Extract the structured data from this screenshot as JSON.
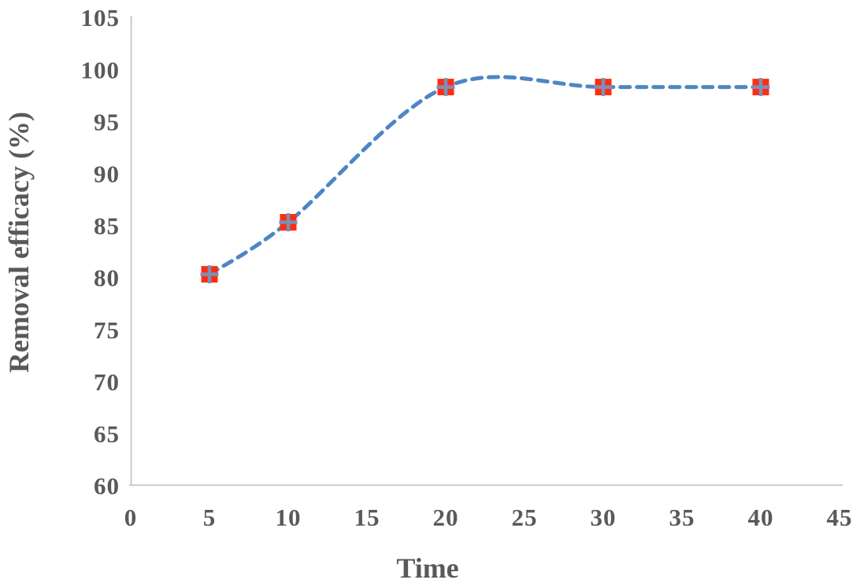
{
  "page": {
    "background": "#ffffff"
  },
  "chart_data": {
    "type": "line",
    "title": "",
    "xlabel": "Time",
    "ylabel": "Removal efficacy (%)",
    "x": [
      5,
      10,
      20,
      30,
      40
    ],
    "y": [
      80.3,
      85.3,
      98.3,
      98.3,
      98.3
    ],
    "xlim": [
      0,
      45
    ],
    "ylim": [
      60,
      105
    ],
    "x_ticks": [
      0,
      5,
      10,
      15,
      20,
      25,
      30,
      35,
      40,
      45
    ],
    "y_ticks": [
      60,
      65,
      70,
      75,
      80,
      85,
      90,
      95,
      100,
      105
    ],
    "grid": false,
    "legend": "none",
    "line": {
      "style": "dashed",
      "smooth": true,
      "color": "#4E86C5",
      "width": 5,
      "dash": "12 9"
    },
    "marker": {
      "shape": "square-plus",
      "fill": "#FF2D10",
      "cross_color": "#7D8FB8",
      "size": 21
    },
    "axis_line_color": "#C8C8C8",
    "tick_label_color": "#595959",
    "axis_title_color": "#595959"
  }
}
